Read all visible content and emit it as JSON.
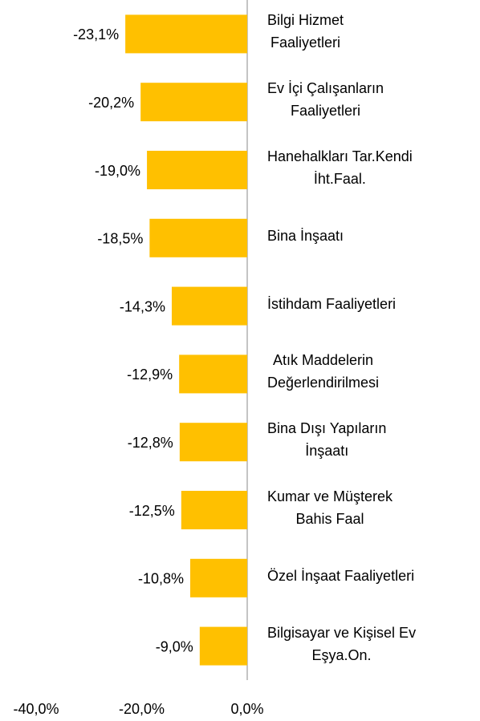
{
  "chart_data": {
    "type": "barh",
    "categories": [
      "Bilgi Hizmet\nFaaliyetleri",
      "Ev İçi Çalışanların\nFaaliyetleri",
      "Hanehalkları Tar.Kendi\nİht.Faal.",
      "Bina İnşaatı",
      "İstihdam Faaliyetleri",
      "Atık Maddelerin\nDeğerlendirilmesi",
      "Bina Dışı Yapıların\nİnşaatı",
      "Kumar ve Müşterek\nBahis Faal",
      "Özel İnşaat Faaliyetleri",
      "Bilgisayar ve Kişisel Ev\nEşya.On."
    ],
    "values": [
      -23.1,
      -20.2,
      -19.0,
      -18.5,
      -14.3,
      -12.9,
      -12.8,
      -12.5,
      -10.8,
      -9.0
    ],
    "value_labels": [
      "-23,1%",
      "-20,2%",
      "-19,0%",
      "-18,5%",
      "-14,3%",
      "-12,9%",
      "-12,8%",
      "-12,5%",
      "-10,8%",
      "-9,0%"
    ],
    "color": "#FFC000",
    "xlim": [
      -40,
      0
    ],
    "xticks": [
      {
        "value": -40,
        "label": "-40,0%"
      },
      {
        "value": -20,
        "label": "-20,0%"
      },
      {
        "value": 0,
        "label": "0,0%"
      }
    ]
  }
}
